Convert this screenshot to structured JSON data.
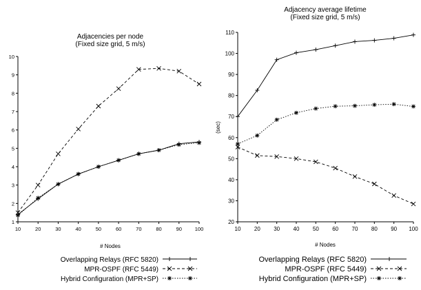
{
  "colors": {
    "axis": "#000000",
    "line": "#000000",
    "background": "#ffffff"
  },
  "chart_data": [
    {
      "type": "line",
      "title": "Adjacencies per node",
      "subtitle": "(Fixed size grid, 5 m/s)",
      "xlabel": "# Nodes",
      "ylabel": "",
      "x": [
        10,
        20,
        30,
        40,
        50,
        60,
        70,
        80,
        90,
        100
      ],
      "xticks": [
        "10",
        "20",
        "30",
        "40",
        "50",
        "60",
        "70",
        "80",
        "90",
        "100"
      ],
      "ylim": [
        1,
        10
      ],
      "yticks": [
        "1",
        "2",
        "3",
        "4",
        "5",
        "6",
        "7",
        "8",
        "9",
        "10"
      ],
      "grid": false,
      "legend_position": "bottom",
      "series": [
        {
          "name": "Overlapping Relays (RFC 5820)",
          "marker": "plus",
          "dash": "solid",
          "values": [
            1.4,
            2.25,
            3.05,
            3.6,
            4.0,
            4.35,
            4.7,
            4.9,
            5.25,
            5.35
          ]
        },
        {
          "name": "MPR-OSPF (RFC 5449)",
          "marker": "x",
          "dash": "dashed",
          "values": [
            1.5,
            3.0,
            4.7,
            6.05,
            7.3,
            8.25,
            9.3,
            9.35,
            9.2,
            8.5
          ]
        },
        {
          "name": "Hybrid Configuration (MPR+SP)",
          "marker": "star",
          "dash": "dotted",
          "values": [
            1.35,
            2.3,
            3.05,
            3.6,
            4.0,
            4.35,
            4.7,
            4.9,
            5.2,
            5.3
          ]
        }
      ]
    },
    {
      "type": "line",
      "title": "Adjacency average lifetime",
      "subtitle": "(Fixed size grid, 5 m/s)",
      "xlabel": "# Nodes",
      "ylabel": "(sec)",
      "x": [
        10,
        20,
        30,
        40,
        50,
        60,
        70,
        80,
        90,
        100
      ],
      "xticks": [
        "10",
        "20",
        "30",
        "40",
        "50",
        "60",
        "70",
        "80",
        "90",
        "100"
      ],
      "ylim": [
        20,
        110
      ],
      "yticks": [
        "20",
        "30",
        "40",
        "50",
        "60",
        "70",
        "80",
        "90",
        "100",
        "110"
      ],
      "grid": false,
      "legend_position": "bottom",
      "series": [
        {
          "name": "Overlapping Relays (RFC 5820)",
          "marker": "plus",
          "dash": "solid",
          "values": [
            70,
            82.5,
            97,
            100.3,
            101.8,
            103.7,
            105.6,
            106.2,
            107.2,
            108.8
          ]
        },
        {
          "name": "MPR-OSPF (RFC 5449)",
          "marker": "x",
          "dash": "dashed",
          "values": [
            55.5,
            51.5,
            51.0,
            50.0,
            48.5,
            45.5,
            41.5,
            38.0,
            32.5,
            28.5
          ]
        },
        {
          "name": "Hybrid Configuration (MPR+SP)",
          "marker": "star",
          "dash": "dotted",
          "values": [
            57,
            61,
            68.5,
            71.8,
            73.8,
            74.9,
            75.1,
            75.6,
            75.9,
            74.8
          ]
        }
      ]
    }
  ]
}
